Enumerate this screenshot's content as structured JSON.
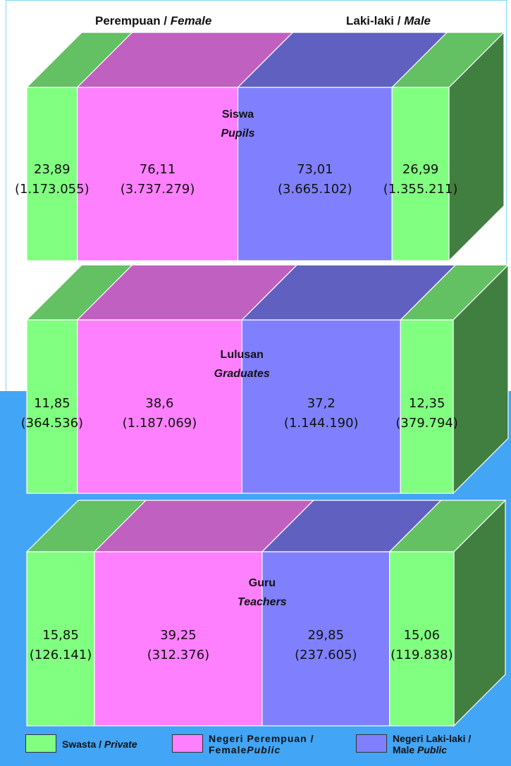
{
  "headers": {
    "female_main": "Perempuan / ",
    "female_italic": "Female",
    "male_main": "Laki-laki / ",
    "male_italic": "Male"
  },
  "colors": {
    "private": "#80ff80",
    "private_top": "#63c063",
    "private_side": "#417f41",
    "public_female": "#ff80ff",
    "public_female_top": "#c060c0",
    "public_male": "#8080ff",
    "public_male_top": "#6060c0",
    "bg_blue": "#42a5f5"
  },
  "legend": {
    "private_main": "Swasta / ",
    "private_italic": "Private",
    "public_female_line1": "Negeri Perempuan /",
    "public_female_line2_a": "Female",
    "public_female_line2_b": "Public",
    "public_male_line1": "Negeri Laki-laki /",
    "public_male_line2_a": "Male ",
    "public_male_line2_b": "Public"
  },
  "chart_data": {
    "type": "bar",
    "stacked": true,
    "categories": [
      "Swasta Perempuan",
      "Negeri Perempuan",
      "Negeri Laki-laki",
      "Swasta Laki-laki"
    ],
    "panels": [
      {
        "title": "Siswa",
        "title_en": "Pupils",
        "percent": [
          "23,89",
          "76,11",
          "73,01",
          "26,99"
        ],
        "count": [
          "(1.173.055)",
          "(3.737.279)",
          "(3.665.102)",
          "(1.355.211)"
        ],
        "values": [
          23.89,
          76.11,
          73.01,
          26.99
        ]
      },
      {
        "title": "Lulusan",
        "title_en": "Graduates",
        "percent": [
          "11,85",
          "38,6",
          "37,2",
          "12,35"
        ],
        "count": [
          "(364.536)",
          "(1.187.069)",
          "(1.144.190)",
          "(379.794)"
        ],
        "values": [
          11.85,
          38.6,
          37.2,
          12.35
        ]
      },
      {
        "title": "Guru",
        "title_en": "Teachers",
        "percent": [
          "15,85",
          "39,25",
          "29,85",
          "15,06"
        ],
        "count": [
          "(126.141)",
          "(312.376)",
          "(237.605)",
          "(119.838)"
        ],
        "values": [
          15.85,
          39.25,
          29.85,
          15.06
        ]
      }
    ]
  }
}
